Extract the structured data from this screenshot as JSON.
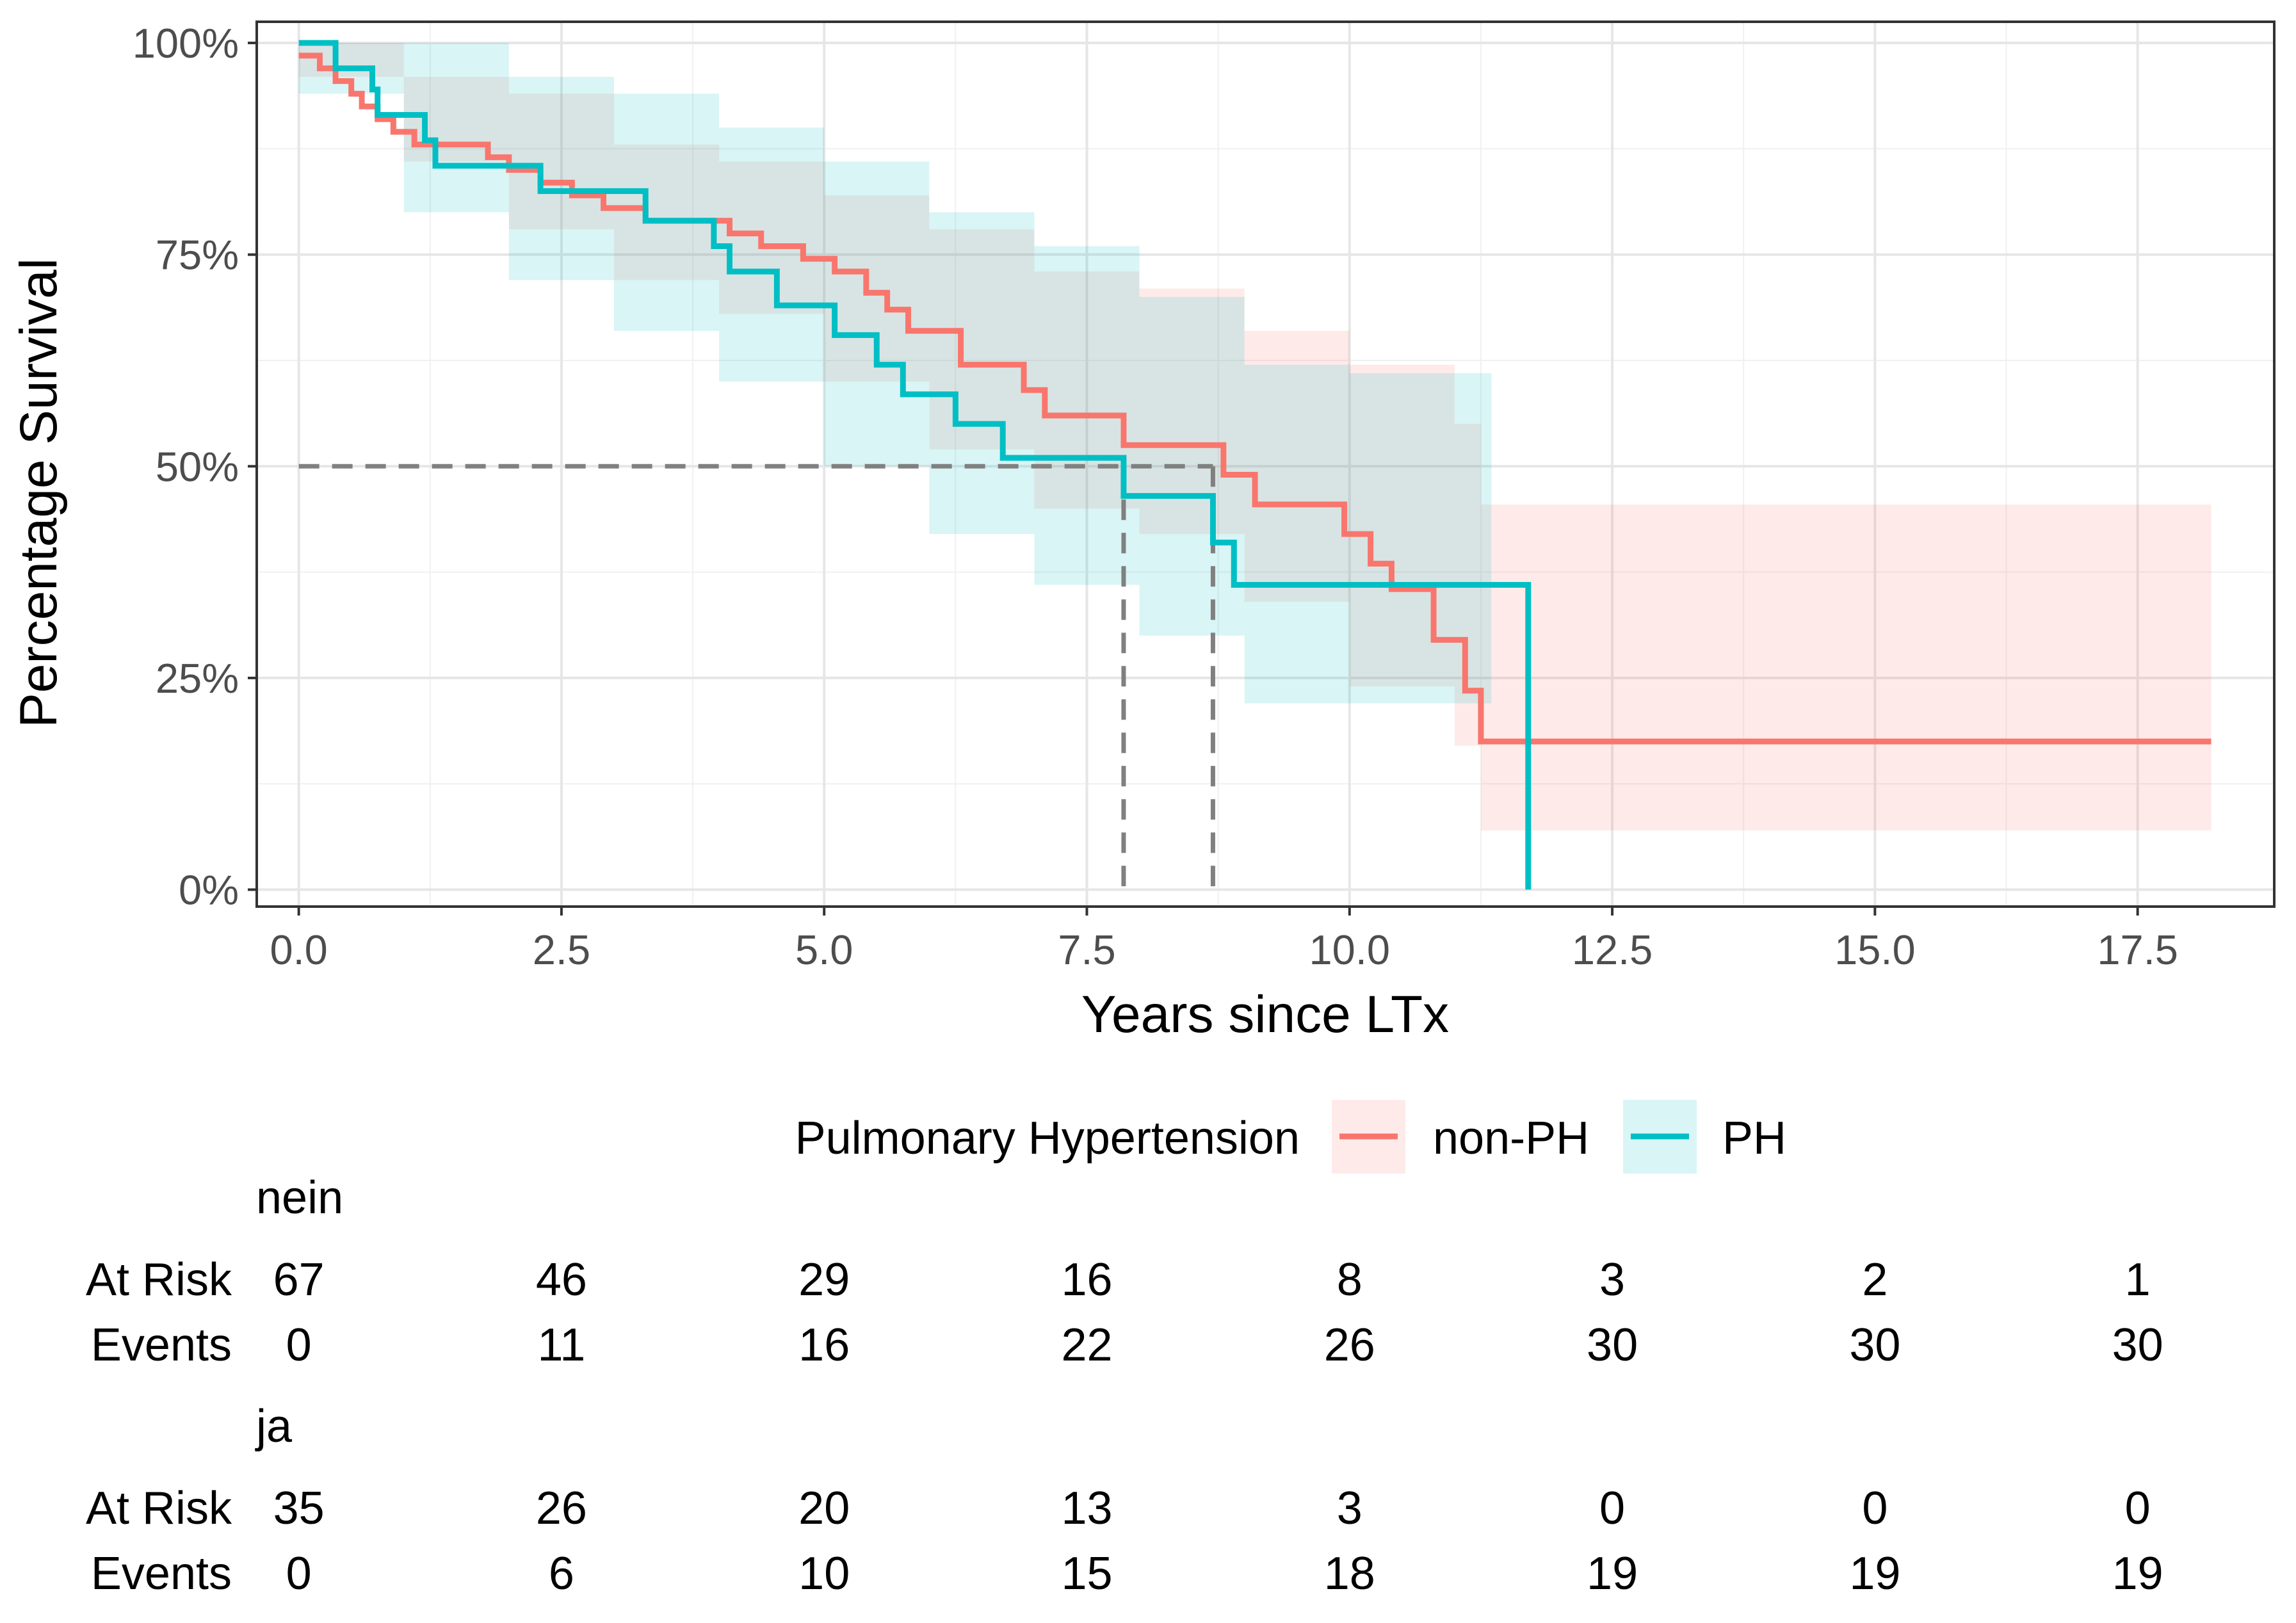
{
  "chart_data": {
    "type": "line",
    "subtype": "kaplan-meier",
    "title": "",
    "xlabel": "Years since LTx",
    "ylabel": "Percentage Survival",
    "xlim": [
      -0.4,
      18.8
    ],
    "ylim": [
      -0.02,
      1.025
    ],
    "x_ticks": [
      0,
      2.5,
      5,
      7.5,
      10,
      12.5,
      15,
      17.5
    ],
    "x_tick_labels": [
      "0.0",
      "2.5",
      "5.0",
      "7.5",
      "10.0",
      "12.5",
      "15.0",
      "17.5"
    ],
    "y_ticks": [
      0,
      0.25,
      0.5,
      0.75,
      1
    ],
    "y_tick_labels": [
      "0%",
      "25%",
      "50%",
      "75%",
      "100%"
    ],
    "grid": true,
    "legend": {
      "title": "Pulmonary Hypertension",
      "position": "bottom",
      "entries": [
        "non-PH",
        "PH"
      ]
    },
    "series": [
      {
        "name": "non-PH",
        "color": "#F8766D",
        "steps": [
          [
            0,
            0.985
          ],
          [
            0.05,
            0.985
          ],
          [
            0.2,
            0.97
          ],
          [
            0.35,
            0.955
          ],
          [
            0.5,
            0.94
          ],
          [
            0.6,
            0.925
          ],
          [
            0.75,
            0.91
          ],
          [
            0.9,
            0.895
          ],
          [
            1.1,
            0.88
          ],
          [
            1.3,
            0.88
          ],
          [
            1.8,
            0.865
          ],
          [
            2.0,
            0.85
          ],
          [
            2.3,
            0.835
          ],
          [
            2.6,
            0.82
          ],
          [
            2.9,
            0.805
          ],
          [
            3.3,
            0.79
          ],
          [
            3.9,
            0.79
          ],
          [
            4.1,
            0.775
          ],
          [
            4.4,
            0.76
          ],
          [
            4.8,
            0.745
          ],
          [
            5.1,
            0.73
          ],
          [
            5.4,
            0.705
          ],
          [
            5.6,
            0.685
          ],
          [
            5.8,
            0.66
          ],
          [
            6.3,
            0.62
          ],
          [
            6.8,
            0.62
          ],
          [
            6.9,
            0.59
          ],
          [
            7.1,
            0.56
          ],
          [
            7.6,
            0.56
          ],
          [
            7.85,
            0.525
          ],
          [
            8.75,
            0.525
          ],
          [
            8.8,
            0.49
          ],
          [
            9.1,
            0.455
          ],
          [
            9.5,
            0.455
          ],
          [
            9.95,
            0.42
          ],
          [
            10.2,
            0.385
          ],
          [
            10.4,
            0.355
          ],
          [
            10.8,
            0.295
          ],
          [
            11.1,
            0.235
          ],
          [
            11.25,
            0.175
          ],
          [
            18.2,
            0.175
          ]
        ],
        "band": [
          [
            0,
            0.96,
            1.0
          ],
          [
            1.0,
            0.86,
            0.96
          ],
          [
            2.0,
            0.78,
            0.94
          ],
          [
            3.0,
            0.72,
            0.88
          ],
          [
            4.0,
            0.68,
            0.86
          ],
          [
            5.0,
            0.6,
            0.82
          ],
          [
            6.0,
            0.52,
            0.78
          ],
          [
            7.0,
            0.45,
            0.73
          ],
          [
            8.0,
            0.42,
            0.71
          ],
          [
            9.0,
            0.34,
            0.66
          ],
          [
            10.0,
            0.24,
            0.62
          ],
          [
            11.0,
            0.17,
            0.55
          ],
          [
            11.25,
            0.07,
            0.455
          ],
          [
            18.2,
            0.07,
            0.455
          ]
        ],
        "median": 8.7
      },
      {
        "name": "PH",
        "color": "#00BFC4",
        "steps": [
          [
            0,
            1.0
          ],
          [
            0.3,
            1.0
          ],
          [
            0.35,
            0.97
          ],
          [
            0.7,
            0.945
          ],
          [
            0.75,
            0.915
          ],
          [
            1.1,
            0.915
          ],
          [
            1.2,
            0.885
          ],
          [
            1.3,
            0.855
          ],
          [
            2.2,
            0.855
          ],
          [
            2.3,
            0.825
          ],
          [
            3.2,
            0.825
          ],
          [
            3.3,
            0.79
          ],
          [
            3.9,
            0.79
          ],
          [
            3.95,
            0.76
          ],
          [
            4.1,
            0.73
          ],
          [
            4.4,
            0.73
          ],
          [
            4.55,
            0.69
          ],
          [
            5.0,
            0.69
          ],
          [
            5.1,
            0.655
          ],
          [
            5.4,
            0.655
          ],
          [
            5.5,
            0.62
          ],
          [
            5.7,
            0.62
          ],
          [
            5.75,
            0.585
          ],
          [
            6.1,
            0.585
          ],
          [
            6.25,
            0.55
          ],
          [
            6.6,
            0.55
          ],
          [
            6.7,
            0.51
          ],
          [
            7.8,
            0.51
          ],
          [
            7.85,
            0.465
          ],
          [
            8.5,
            0.465
          ],
          [
            8.7,
            0.41
          ],
          [
            8.85,
            0.41
          ],
          [
            8.9,
            0.36
          ],
          [
            11.7,
            0.36
          ],
          [
            11.7,
            0.0
          ]
        ],
        "band": [
          [
            0,
            0.94,
            1.0
          ],
          [
            1.0,
            0.8,
            1.0
          ],
          [
            2.0,
            0.72,
            0.96
          ],
          [
            3.0,
            0.66,
            0.94
          ],
          [
            4.0,
            0.6,
            0.9
          ],
          [
            5.0,
            0.5,
            0.86
          ],
          [
            6.0,
            0.42,
            0.8
          ],
          [
            7.0,
            0.36,
            0.76
          ],
          [
            8.0,
            0.3,
            0.7
          ],
          [
            9.0,
            0.22,
            0.62
          ],
          [
            10.0,
            0.22,
            0.61
          ],
          [
            11.35,
            0.22,
            0.61
          ]
        ],
        "median": 7.85
      }
    ],
    "median_reference_line": 0.5
  },
  "risk_table": {
    "times": [
      0,
      2.5,
      5,
      7.5,
      10,
      12.5,
      15,
      17.5
    ],
    "groups": [
      {
        "label": "nein",
        "rows": [
          {
            "label": "At Risk",
            "values": [
              "67",
              "46",
              "29",
              "16",
              "8",
              "3",
              "2",
              "1"
            ]
          },
          {
            "label": "Events",
            "values": [
              "0",
              "11",
              "16",
              "22",
              "26",
              "30",
              "30",
              "30"
            ]
          }
        ]
      },
      {
        "label": "ja",
        "rows": [
          {
            "label": "At Risk",
            "values": [
              "35",
              "26",
              "20",
              "13",
              "3",
              "0",
              "0",
              "0"
            ]
          },
          {
            "label": "Events",
            "values": [
              "0",
              "6",
              "10",
              "15",
              "18",
              "19",
              "19",
              "19"
            ]
          }
        ]
      }
    ]
  }
}
